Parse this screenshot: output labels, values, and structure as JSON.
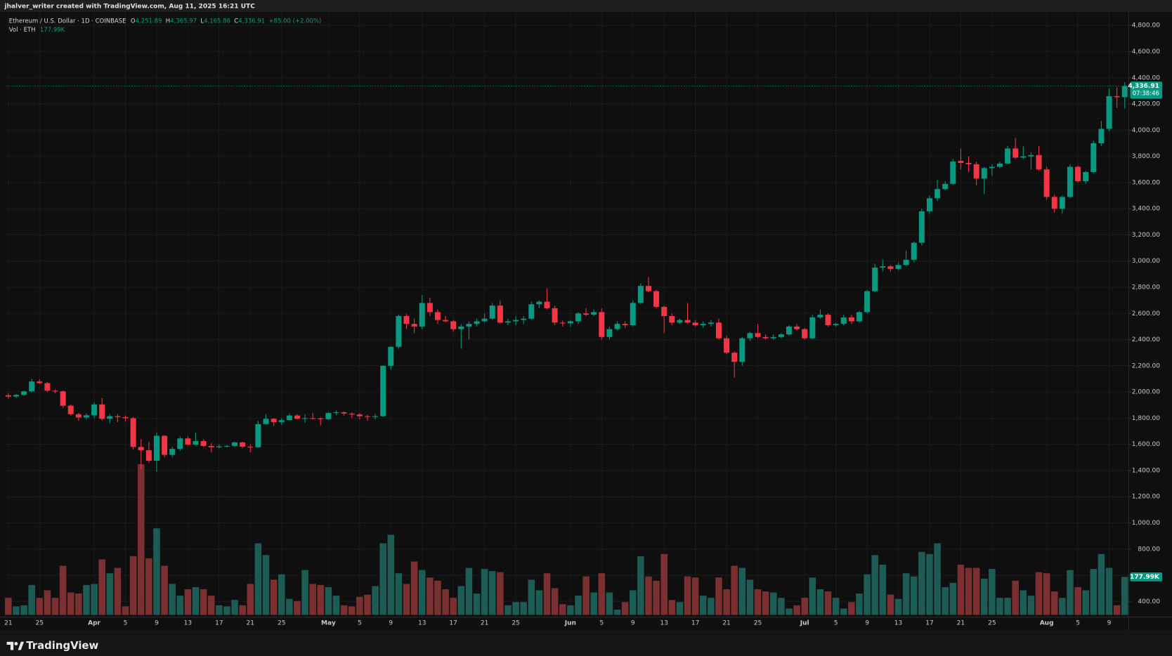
{
  "header": "jhalver_writer created with TradingView.com, Aug 11, 2025 16:21 UTC",
  "footer": "TradingView",
  "chart_data": {
    "type": "candlestick",
    "legend": {
      "symbol": "Ethereum / U.S. Dollar · 1D · COINBASE",
      "items": [
        {
          "key": "O",
          "value": "4,251.89"
        },
        {
          "key": "H",
          "value": "4,365.97"
        },
        {
          "key": "L",
          "value": "4,165.86"
        },
        {
          "key": "C",
          "value": "4,336.91"
        }
      ],
      "change": "+85.00 (+2.00%)",
      "volume": "Vol · ETH",
      "volume_value": "177.99K"
    },
    "up_color": "#089981",
    "down_color": "#f23645",
    "volume_up_color": "#1c5c55",
    "volume_down_color": "#7b2f31",
    "grid": true,
    "xlim": [
      -0.3,
      143.5
    ],
    "xticks": [
      {
        "value": 0,
        "label": "21"
      },
      {
        "value": 4,
        "label": "25"
      },
      {
        "value": 11,
        "label": "Apr"
      },
      {
        "value": 15,
        "label": "5"
      },
      {
        "value": 19,
        "label": "9"
      },
      {
        "value": 23,
        "label": "13"
      },
      {
        "value": 27,
        "label": "17"
      },
      {
        "value": 31,
        "label": "21"
      },
      {
        "value": 35,
        "label": "25"
      },
      {
        "value": 41,
        "label": "May"
      },
      {
        "value": 45,
        "label": "5"
      },
      {
        "value": 49,
        "label": "9"
      },
      {
        "value": 53,
        "label": "13"
      },
      {
        "value": 57,
        "label": "17"
      },
      {
        "value": 61,
        "label": "21"
      },
      {
        "value": 65,
        "label": "25"
      },
      {
        "value": 72,
        "label": "Jun"
      },
      {
        "value": 76,
        "label": "5"
      },
      {
        "value": 80,
        "label": "9"
      },
      {
        "value": 84,
        "label": "13"
      },
      {
        "value": 88,
        "label": "17"
      },
      {
        "value": 92,
        "label": "21"
      },
      {
        "value": 96,
        "label": "25"
      },
      {
        "value": 102,
        "label": "Jul"
      },
      {
        "value": 106,
        "label": "5"
      },
      {
        "value": 110,
        "label": "9"
      },
      {
        "value": 114,
        "label": "13"
      },
      {
        "value": 118,
        "label": "17"
      },
      {
        "value": 122,
        "label": "21"
      },
      {
        "value": 126,
        "label": "25"
      },
      {
        "value": 133,
        "label": "Aug"
      },
      {
        "value": 137,
        "label": "5"
      },
      {
        "value": 141,
        "label": "9"
      }
    ],
    "ylim": [
      280,
      4903
    ],
    "yticks": [
      {
        "value": 400,
        "label": "400.00"
      },
      {
        "value": 600,
        "label": "600.00"
      },
      {
        "value": 800,
        "label": "800.00"
      },
      {
        "value": 1000,
        "label": "1,000.00"
      },
      {
        "value": 1200,
        "label": "1,200.00"
      },
      {
        "value": 1400,
        "label": "1,400.00"
      },
      {
        "value": 1600,
        "label": "1,600.00"
      },
      {
        "value": 1800,
        "label": "1,800.00"
      },
      {
        "value": 2000,
        "label": "2,000.00"
      },
      {
        "value": 2200,
        "label": "2,200.00"
      },
      {
        "value": 2400,
        "label": "2,400.00"
      },
      {
        "value": 2600,
        "label": "2,600.00"
      },
      {
        "value": 2800,
        "label": "2,800.00"
      },
      {
        "value": 3000,
        "label": "3,000.00"
      },
      {
        "value": 3200,
        "label": "3,200.00"
      },
      {
        "value": 3400,
        "label": "3,400.00"
      },
      {
        "value": 3600,
        "label": "3,600.00"
      },
      {
        "value": 3800,
        "label": "3,800.00"
      },
      {
        "value": 4000,
        "label": "4,000.00"
      },
      {
        "value": 4200,
        "label": "4,200.00"
      },
      {
        "value": 4400,
        "label": "4,400.00"
      },
      {
        "value": 4600,
        "label": "4,600.00"
      },
      {
        "value": 4800,
        "label": "4,800.00"
      }
    ],
    "price_label": "4,336.91",
    "countdown": "07:38:46",
    "vlim": [
      0,
      1000
    ],
    "volume_label": "177.99K",
    "ohlc": [
      [
        1975,
        1990,
        1950,
        1965
      ],
      [
        1965,
        1985,
        1955,
        1978
      ],
      [
        1978,
        2010,
        1970,
        2005
      ],
      [
        2005,
        2100,
        1995,
        2080
      ],
      [
        2080,
        2095,
        2060,
        2068
      ],
      [
        2068,
        2075,
        2000,
        2010
      ],
      [
        2010,
        2020,
        1990,
        2005
      ],
      [
        2005,
        2010,
        1880,
        1895
      ],
      [
        1895,
        1905,
        1820,
        1830
      ],
      [
        1830,
        1840,
        1780,
        1805
      ],
      [
        1805,
        1835,
        1790,
        1822
      ],
      [
        1822,
        1920,
        1800,
        1905
      ],
      [
        1905,
        1955,
        1780,
        1795
      ],
      [
        1795,
        1830,
        1760,
        1815
      ],
      [
        1815,
        1830,
        1770,
        1808
      ],
      [
        1808,
        1820,
        1775,
        1800
      ],
      [
        1800,
        1810,
        1560,
        1580
      ],
      [
        1580,
        1640,
        1410,
        1555
      ],
      [
        1555,
        1620,
        1460,
        1475
      ],
      [
        1475,
        1690,
        1390,
        1665
      ],
      [
        1665,
        1670,
        1500,
        1520
      ],
      [
        1520,
        1580,
        1500,
        1565
      ],
      [
        1565,
        1660,
        1550,
        1645
      ],
      [
        1645,
        1660,
        1590,
        1598
      ],
      [
        1598,
        1690,
        1590,
        1625
      ],
      [
        1625,
        1640,
        1580,
        1588
      ],
      [
        1588,
        1610,
        1540,
        1578
      ],
      [
        1578,
        1600,
        1570,
        1585
      ],
      [
        1585,
        1595,
        1575,
        1588
      ],
      [
        1588,
        1620,
        1580,
        1615
      ],
      [
        1615,
        1620,
        1570,
        1582
      ],
      [
        1582,
        1600,
        1540,
        1578
      ],
      [
        1578,
        1780,
        1575,
        1755
      ],
      [
        1755,
        1830,
        1750,
        1795
      ],
      [
        1795,
        1800,
        1740,
        1770
      ],
      [
        1770,
        1800,
        1750,
        1785
      ],
      [
        1785,
        1835,
        1780,
        1820
      ],
      [
        1820,
        1830,
        1790,
        1795
      ],
      [
        1795,
        1830,
        1765,
        1800
      ],
      [
        1800,
        1840,
        1790,
        1798
      ],
      [
        1798,
        1805,
        1745,
        1792
      ],
      [
        1792,
        1845,
        1785,
        1840
      ],
      [
        1840,
        1860,
        1825,
        1845
      ],
      [
        1845,
        1850,
        1820,
        1835
      ],
      [
        1835,
        1845,
        1800,
        1828
      ],
      [
        1828,
        1840,
        1790,
        1815
      ],
      [
        1815,
        1825,
        1780,
        1810
      ],
      [
        1810,
        1835,
        1790,
        1815
      ],
      [
        1815,
        2205,
        1810,
        2200
      ],
      [
        2200,
        2350,
        2170,
        2345
      ],
      [
        2345,
        2590,
        2330,
        2580
      ],
      [
        2580,
        2595,
        2480,
        2520
      ],
      [
        2520,
        2560,
        2450,
        2500
      ],
      [
        2500,
        2740,
        2480,
        2680
      ],
      [
        2680,
        2720,
        2580,
        2610
      ],
      [
        2610,
        2630,
        2520,
        2550
      ],
      [
        2550,
        2580,
        2530,
        2540
      ],
      [
        2540,
        2550,
        2460,
        2480
      ],
      [
        2480,
        2520,
        2330,
        2500
      ],
      [
        2500,
        2540,
        2400,
        2520
      ],
      [
        2520,
        2560,
        2500,
        2540
      ],
      [
        2540,
        2600,
        2530,
        2560
      ],
      [
        2560,
        2680,
        2550,
        2660
      ],
      [
        2660,
        2700,
        2520,
        2530
      ],
      [
        2530,
        2560,
        2510,
        2540
      ],
      [
        2540,
        2580,
        2510,
        2550
      ],
      [
        2550,
        2580,
        2520,
        2560
      ],
      [
        2560,
        2690,
        2550,
        2670
      ],
      [
        2670,
        2700,
        2640,
        2690
      ],
      [
        2690,
        2790,
        2630,
        2640
      ],
      [
        2640,
        2660,
        2510,
        2530
      ],
      [
        2530,
        2545,
        2500,
        2525
      ],
      [
        2525,
        2550,
        2500,
        2540
      ],
      [
        2540,
        2610,
        2520,
        2600
      ],
      [
        2600,
        2640,
        2580,
        2590
      ],
      [
        2590,
        2630,
        2580,
        2610
      ],
      [
        2610,
        2640,
        2400,
        2420
      ],
      [
        2420,
        2500,
        2400,
        2480
      ],
      [
        2480,
        2540,
        2470,
        2520
      ],
      [
        2520,
        2540,
        2490,
        2510
      ],
      [
        2510,
        2700,
        2500,
        2680
      ],
      [
        2680,
        2830,
        2670,
        2810
      ],
      [
        2810,
        2880,
        2760,
        2770
      ],
      [
        2770,
        2780,
        2640,
        2650
      ],
      [
        2650,
        2660,
        2450,
        2580
      ],
      [
        2580,
        2600,
        2510,
        2530
      ],
      [
        2530,
        2560,
        2520,
        2550
      ],
      [
        2550,
        2680,
        2520,
        2530
      ],
      [
        2530,
        2550,
        2500,
        2510
      ],
      [
        2510,
        2540,
        2490,
        2520
      ],
      [
        2520,
        2550,
        2500,
        2530
      ],
      [
        2530,
        2560,
        2400,
        2410
      ],
      [
        2410,
        2430,
        2290,
        2300
      ],
      [
        2300,
        2310,
        2110,
        2230
      ],
      [
        2230,
        2420,
        2200,
        2410
      ],
      [
        2410,
        2460,
        2390,
        2450
      ],
      [
        2450,
        2520,
        2410,
        2420
      ],
      [
        2420,
        2440,
        2400,
        2410
      ],
      [
        2410,
        2440,
        2400,
        2420
      ],
      [
        2420,
        2450,
        2410,
        2440
      ],
      [
        2440,
        2510,
        2430,
        2500
      ],
      [
        2500,
        2520,
        2470,
        2480
      ],
      [
        2480,
        2490,
        2400,
        2410
      ],
      [
        2410,
        2590,
        2400,
        2570
      ],
      [
        2570,
        2630,
        2560,
        2590
      ],
      [
        2590,
        2600,
        2500,
        2510
      ],
      [
        2510,
        2530,
        2500,
        2520
      ],
      [
        2520,
        2590,
        2510,
        2570
      ],
      [
        2570,
        2590,
        2520,
        2540
      ],
      [
        2540,
        2620,
        2530,
        2610
      ],
      [
        2610,
        2780,
        2600,
        2770
      ],
      [
        2770,
        2980,
        2760,
        2950
      ],
      [
        2950,
        3010,
        2920,
        2960
      ],
      [
        2960,
        2970,
        2920,
        2940
      ],
      [
        2940,
        2990,
        2930,
        2970
      ],
      [
        2970,
        3080,
        2960,
        3010
      ],
      [
        3010,
        3150,
        2990,
        3140
      ],
      [
        3140,
        3400,
        3120,
        3380
      ],
      [
        3380,
        3500,
        3360,
        3480
      ],
      [
        3480,
        3620,
        3460,
        3550
      ],
      [
        3550,
        3610,
        3540,
        3590
      ],
      [
        3590,
        3780,
        3580,
        3760
      ],
      [
        3765,
        3860,
        3700,
        3750
      ],
      [
        3750,
        3800,
        3680,
        3740
      ],
      [
        3740,
        3760,
        3580,
        3630
      ],
      [
        3630,
        3720,
        3510,
        3710
      ],
      [
        3710,
        3740,
        3650,
        3720
      ],
      [
        3720,
        3760,
        3710,
        3745
      ],
      [
        3745,
        3880,
        3740,
        3860
      ],
      [
        3860,
        3940,
        3780,
        3790
      ],
      [
        3790,
        3880,
        3780,
        3800
      ],
      [
        3800,
        3830,
        3700,
        3810
      ],
      [
        3810,
        3880,
        3690,
        3700
      ],
      [
        3700,
        3720,
        3470,
        3490
      ],
      [
        3490,
        3510,
        3370,
        3400
      ],
      [
        3400,
        3500,
        3360,
        3490
      ],
      [
        3490,
        3740,
        3480,
        3720
      ],
      [
        3720,
        3730,
        3600,
        3610
      ],
      [
        3610,
        3690,
        3590,
        3680
      ],
      [
        3680,
        3920,
        3670,
        3900
      ],
      [
        3900,
        4070,
        3880,
        4010
      ],
      [
        4010,
        4320,
        3990,
        4260
      ],
      [
        4260,
        4330,
        4170,
        4251.89
      ],
      [
        4251.89,
        4365.97,
        4165.86,
        4336.91
      ]
    ],
    "volume": [
      80,
      40,
      45,
      140,
      80,
      115,
      80,
      230,
      105,
      100,
      140,
      145,
      260,
      195,
      220,
      40,
      275,
      705,
      265,
      405,
      230,
      145,
      90,
      120,
      130,
      120,
      90,
      45,
      40,
      70,
      45,
      145,
      335,
      280,
      165,
      190,
      75,
      65,
      210,
      145,
      140,
      130,
      90,
      45,
      40,
      85,
      95,
      135,
      335,
      375,
      195,
      145,
      250,
      210,
      175,
      160,
      120,
      80,
      135,
      220,
      100,
      215,
      205,
      200,
      45,
      60,
      60,
      165,
      115,
      195,
      125,
      50,
      45,
      90,
      180,
      105,
      195,
      105,
      25,
      60,
      115,
      275,
      180,
      160,
      285,
      70,
      60,
      180,
      175,
      90,
      80,
      175,
      120,
      230,
      220,
      165,
      120,
      110,
      105,
      80,
      30,
      45,
      80,
      175,
      120,
      110,
      80,
      30,
      60,
      100,
      190,
      280,
      235,
      95,
      75,
      195,
      180,
      295,
      285,
      335,
      130,
      150,
      235,
      220,
      220,
      170,
      215,
      80,
      80,
      160,
      115,
      90,
      200,
      195,
      110,
      80,
      210,
      130,
      115,
      215,
      285,
      220,
      45,
      177.99
    ]
  }
}
